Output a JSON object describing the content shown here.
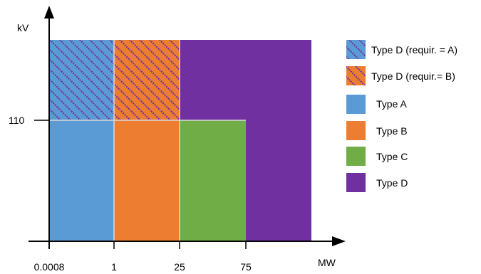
{
  "axes": {
    "x_label": "MW",
    "y_label": "kV",
    "x_ticks": [
      "0.0008",
      "1",
      "25",
      "75"
    ],
    "y_ticks": [
      "110"
    ]
  },
  "colors": {
    "type_a": "#5b9bd5",
    "type_b": "#ed7d31",
    "type_c": "#70ad47",
    "type_d": "#7030a0",
    "grid_line": "#d9d9d9",
    "hatch": "#7030a0"
  },
  "regions": [
    {
      "type": "Type A",
      "mw_range": [
        "0.0008",
        "1"
      ],
      "kv_range": [
        "0",
        "110"
      ]
    },
    {
      "type": "Type B",
      "mw_range": [
        "1",
        "25"
      ],
      "kv_range": [
        "0",
        "110"
      ]
    },
    {
      "type": "Type C",
      "mw_range": [
        "25",
        "75"
      ],
      "kv_range": [
        "0",
        "110"
      ]
    },
    {
      "type": "Type D",
      "mw_range": [
        "75",
        ""
      ],
      "kv_range": [
        "0",
        ""
      ]
    },
    {
      "type": "Type D",
      "mw_range": [
        "25",
        "75"
      ],
      "kv_range": [
        "110",
        ""
      ]
    },
    {
      "type": "Type D (requir. = A)",
      "mw_range": [
        "0.0008",
        "1"
      ],
      "kv_range": [
        "110",
        ""
      ]
    },
    {
      "type": "Type D (requir.= B)",
      "mw_range": [
        "1",
        "25"
      ],
      "kv_range": [
        "110",
        ""
      ]
    }
  ],
  "legend": [
    {
      "label": "Type D (requir. = A)",
      "swatch": "hatch-a"
    },
    {
      "label": "Type D (requir.= B)",
      "swatch": "hatch-b"
    },
    {
      "label": "Type A",
      "swatch": "type-a"
    },
    {
      "label": "Type B",
      "swatch": "type-b"
    },
    {
      "label": "Type C",
      "swatch": "type-c"
    },
    {
      "label": "Type D",
      "swatch": "type-d"
    }
  ]
}
